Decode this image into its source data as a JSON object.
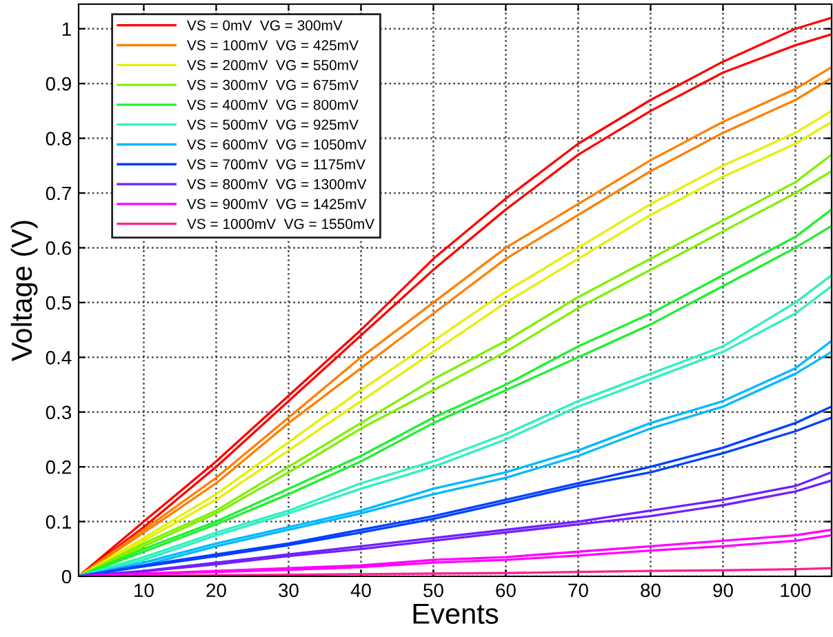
{
  "chart_data": {
    "type": "line",
    "xlabel": "Events",
    "ylabel": "Voltage (V)",
    "x": [
      1,
      10,
      20,
      30,
      40,
      50,
      60,
      70,
      80,
      90,
      100,
      105
    ],
    "xlim": [
      1,
      105
    ],
    "ylim": [
      0,
      1.045
    ],
    "xticks": [
      10,
      20,
      30,
      40,
      50,
      60,
      70,
      80,
      90,
      100
    ],
    "yticks": [
      0,
      0.1,
      0.2,
      0.3,
      0.4,
      0.5,
      0.6,
      0.7,
      0.8,
      0.9,
      1
    ],
    "grid": true,
    "legend": "top left",
    "marker": "none",
    "line_style": "solid",
    "series": [
      {
        "name": "VS = 0mV  VG = 300mV",
        "color": "#ff0000",
        "values": [
          0,
          0.1,
          0.21,
          0.33,
          0.45,
          0.58,
          0.69,
          0.79,
          0.87,
          0.94,
          1.0,
          1.02
        ]
      },
      {
        "color": "#ff0000",
        "values": [
          0,
          0.09,
          0.2,
          0.32,
          0.44,
          0.56,
          0.67,
          0.77,
          0.85,
          0.92,
          0.97,
          0.99
        ]
      },
      {
        "name": "VS = 100mV  VG = 425mV",
        "color": "#ff8000",
        "values": [
          0,
          0.085,
          0.18,
          0.29,
          0.4,
          0.5,
          0.6,
          0.68,
          0.76,
          0.83,
          0.89,
          0.93
        ]
      },
      {
        "color": "#ff8000",
        "values": [
          0,
          0.08,
          0.17,
          0.28,
          0.38,
          0.48,
          0.58,
          0.66,
          0.74,
          0.81,
          0.87,
          0.91
        ]
      },
      {
        "name": "VS = 200mV  VG = 550mV",
        "color": "#e6f000",
        "values": [
          0,
          0.07,
          0.15,
          0.245,
          0.34,
          0.43,
          0.52,
          0.6,
          0.68,
          0.75,
          0.81,
          0.85
        ]
      },
      {
        "color": "#e6f000",
        "values": [
          0,
          0.065,
          0.14,
          0.23,
          0.32,
          0.41,
          0.5,
          0.58,
          0.66,
          0.73,
          0.79,
          0.83
        ]
      },
      {
        "name": "VS = 300mV  VG = 675mV",
        "color": "#80f000",
        "values": [
          0,
          0.06,
          0.12,
          0.2,
          0.28,
          0.36,
          0.43,
          0.51,
          0.58,
          0.65,
          0.72,
          0.77
        ]
      },
      {
        "color": "#80f000",
        "values": [
          0,
          0.055,
          0.115,
          0.19,
          0.27,
          0.34,
          0.41,
          0.49,
          0.56,
          0.63,
          0.7,
          0.74
        ]
      },
      {
        "name": "VS = 400mV  VG = 800mV",
        "color": "#20f030",
        "values": [
          0,
          0.05,
          0.1,
          0.16,
          0.22,
          0.29,
          0.35,
          0.42,
          0.48,
          0.55,
          0.62,
          0.67
        ]
      },
      {
        "color": "#20f030",
        "values": [
          0,
          0.045,
          0.095,
          0.15,
          0.21,
          0.28,
          0.34,
          0.4,
          0.46,
          0.53,
          0.6,
          0.64
        ]
      },
      {
        "name": "VS = 500mV  VG = 925mV",
        "color": "#30f0c0",
        "values": [
          0,
          0.035,
          0.08,
          0.12,
          0.17,
          0.21,
          0.26,
          0.32,
          0.37,
          0.42,
          0.5,
          0.55
        ]
      },
      {
        "color": "#30f0c0",
        "values": [
          0,
          0.03,
          0.075,
          0.115,
          0.16,
          0.2,
          0.25,
          0.31,
          0.36,
          0.41,
          0.48,
          0.53
        ]
      },
      {
        "name": "VS = 600mV  VG = 1050mV",
        "color": "#00b8ff",
        "values": [
          0,
          0.025,
          0.06,
          0.09,
          0.12,
          0.16,
          0.19,
          0.23,
          0.28,
          0.32,
          0.38,
          0.43
        ]
      },
      {
        "color": "#00b8ff",
        "values": [
          0,
          0.02,
          0.055,
          0.085,
          0.115,
          0.15,
          0.18,
          0.22,
          0.27,
          0.31,
          0.37,
          0.41
        ]
      },
      {
        "name": "VS = 700mV  VG = 1175mV",
        "color": "#0040ff",
        "values": [
          0,
          0.02,
          0.04,
          0.06,
          0.085,
          0.11,
          0.14,
          0.17,
          0.2,
          0.235,
          0.28,
          0.31
        ]
      },
      {
        "color": "#0040ff",
        "values": [
          0,
          0.018,
          0.037,
          0.057,
          0.08,
          0.105,
          0.135,
          0.165,
          0.19,
          0.225,
          0.265,
          0.29
        ]
      },
      {
        "name": "VS = 800mV  VG = 1300mV",
        "color": "#7020ff",
        "values": [
          0,
          0.01,
          0.025,
          0.04,
          0.055,
          0.07,
          0.085,
          0.1,
          0.12,
          0.14,
          0.165,
          0.19
        ]
      },
      {
        "color": "#7020ff",
        "values": [
          0,
          0.009,
          0.022,
          0.037,
          0.05,
          0.065,
          0.08,
          0.095,
          0.11,
          0.13,
          0.155,
          0.175
        ]
      },
      {
        "name": "VS = 900mV  VG = 1425mV",
        "color": "#ff00ff",
        "values": [
          0,
          0.005,
          0.01,
          0.015,
          0.02,
          0.03,
          0.035,
          0.045,
          0.055,
          0.065,
          0.075,
          0.085
        ]
      },
      {
        "color": "#ff00ff",
        "values": [
          0,
          0.004,
          0.008,
          0.012,
          0.017,
          0.025,
          0.03,
          0.038,
          0.047,
          0.055,
          0.065,
          0.075
        ]
      },
      {
        "name": "VS = 1000mV  VG = 1550mV",
        "color": "#ff2090",
        "values": [
          0,
          0.001,
          0.002,
          0.003,
          0.004,
          0.005,
          0.006,
          0.008,
          0.01,
          0.011,
          0.013,
          0.015
        ]
      }
    ]
  }
}
